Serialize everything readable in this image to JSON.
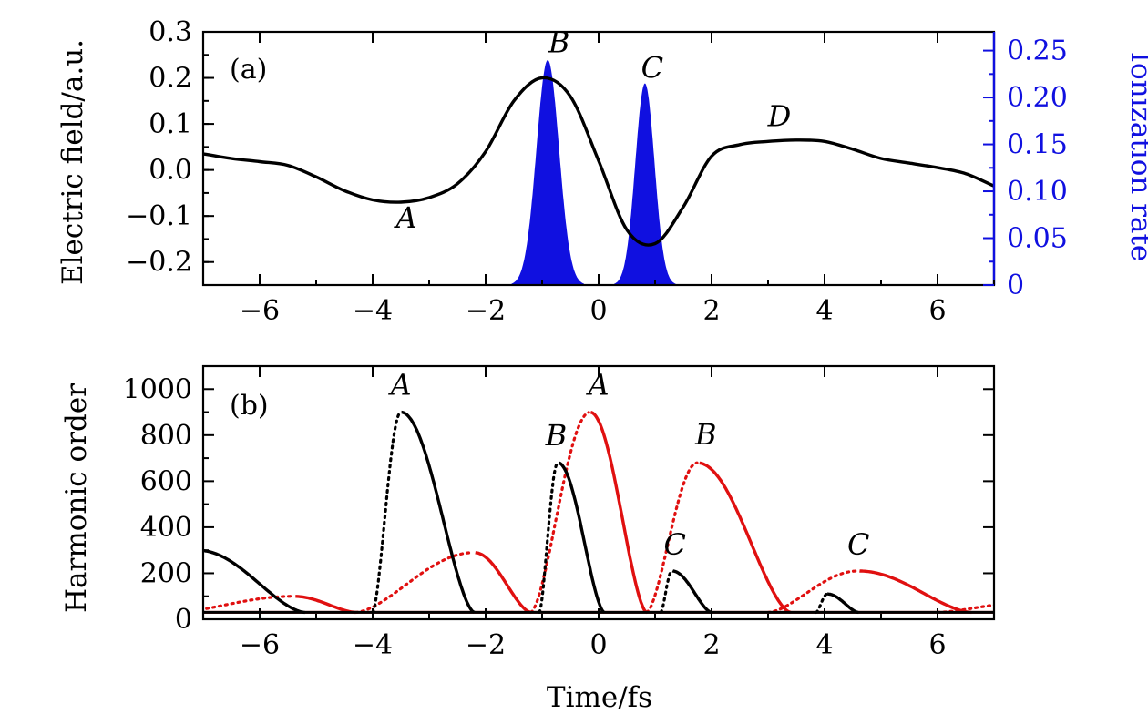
{
  "chart_data": [
    {
      "panel_label": "(a)",
      "type": "line",
      "xlabel": "",
      "ylabel": "Electric field/a.u.",
      "y2label": "Ionization rate",
      "xlim": [
        -7,
        7
      ],
      "ylim": [
        -0.25,
        0.3
      ],
      "y2lim": [
        0,
        0.27
      ],
      "xticks": [
        "−6",
        "−4",
        "−2",
        "0",
        "2",
        "4",
        "6"
      ],
      "yticks": [
        "0.3",
        "0.2",
        "0.1",
        "0.0",
        "−0.1",
        "−0.2"
      ],
      "y2ticks": [
        "0.25",
        "0.20",
        "0.15",
        "0.10",
        "0.05",
        "0"
      ],
      "colors": {
        "field": "#000000",
        "ionization": "#1010e0"
      },
      "series": [
        {
          "role": "field",
          "x": [
            -7,
            -6.5,
            -6,
            -5.5,
            -5,
            -4.5,
            -4,
            -3.5,
            -3,
            -2.5,
            -2,
            -1.5,
            -1,
            -0.5,
            0,
            0.5,
            1,
            1.5,
            2,
            2.5,
            3,
            3.5,
            4,
            4.5,
            5,
            5.5,
            6,
            6.5,
            7
          ],
          "y": [
            0.035,
            0.025,
            0.018,
            0.01,
            -0.015,
            -0.045,
            -0.065,
            -0.07,
            -0.06,
            -0.03,
            0.04,
            0.15,
            0.2,
            0.16,
            0.02,
            -0.13,
            -0.16,
            -0.08,
            0.03,
            0.055,
            0.062,
            0.065,
            0.062,
            0.045,
            0.025,
            0.015,
            0.005,
            -0.008,
            -0.035
          ]
        },
        {
          "role": "ionization",
          "peaks": [
            {
              "center": -0.9,
              "height": 0.24,
              "width": 0.2
            },
            {
              "center": 0.82,
              "height": 0.215,
              "width": 0.17
            }
          ]
        }
      ],
      "annotations": [
        {
          "text": "A",
          "x": -3.4,
          "y": -0.125
        },
        {
          "text": "B",
          "x": -0.7,
          "y": 0.255
        },
        {
          "text": "C",
          "x": 0.95,
          "y": 0.2
        },
        {
          "text": "D",
          "x": 3.2,
          "y": 0.095
        }
      ]
    },
    {
      "panel_label": "(b)",
      "type": "line",
      "xlabel": "Time/fs",
      "ylabel": "Harmonic order",
      "xlim": [
        -7,
        7
      ],
      "ylim": [
        0,
        1100
      ],
      "xticks": [
        "−6",
        "−4",
        "−2",
        "0",
        "2",
        "4",
        "6"
      ],
      "yticks": [
        "1000",
        "800",
        "600",
        "400",
        "200",
        "0"
      ],
      "colors": {
        "black": "#000000",
        "red": "#e01010"
      },
      "series": [
        {
          "role": "black",
          "peaks": [
            {
              "start": -7.5,
              "peak": -7.1,
              "end": -5.2,
              "height": 300
            },
            {
              "start": -4.0,
              "peak": -3.5,
              "end": -2.2,
              "height": 900
            },
            {
              "start": -1.05,
              "peak": -0.72,
              "end": 0.1,
              "height": 680
            },
            {
              "start": 1.1,
              "peak": 1.3,
              "end": 2.0,
              "height": 210
            },
            {
              "start": 3.85,
              "peak": 4.05,
              "end": 4.6,
              "height": 110
            }
          ]
        },
        {
          "role": "red",
          "peaks": [
            {
              "start": -7.5,
              "peak": -5.4,
              "end": -4.3,
              "height": 100
            },
            {
              "start": -4.3,
              "peak": -2.2,
              "end": -1.2,
              "height": 290
            },
            {
              "start": -1.2,
              "peak": -0.15,
              "end": 0.85,
              "height": 900
            },
            {
              "start": 0.85,
              "peak": 1.75,
              "end": 3.4,
              "height": 680
            },
            {
              "start": 3.0,
              "peak": 4.6,
              "end": 6.6,
              "height": 210
            },
            {
              "start": 6.0,
              "peak": 7.5,
              "end": 7.5,
              "height": 70
            }
          ]
        }
      ],
      "annotations": [
        {
          "text": "A",
          "x": -3.5,
          "y": 975
        },
        {
          "text": "B",
          "x": -0.75,
          "y": 755
        },
        {
          "text": "A",
          "x": 0.0,
          "y": 975
        },
        {
          "text": "B",
          "x": 1.9,
          "y": 760
        },
        {
          "text": "C",
          "x": 1.35,
          "y": 280
        },
        {
          "text": "C",
          "x": 4.6,
          "y": 280
        }
      ]
    }
  ]
}
